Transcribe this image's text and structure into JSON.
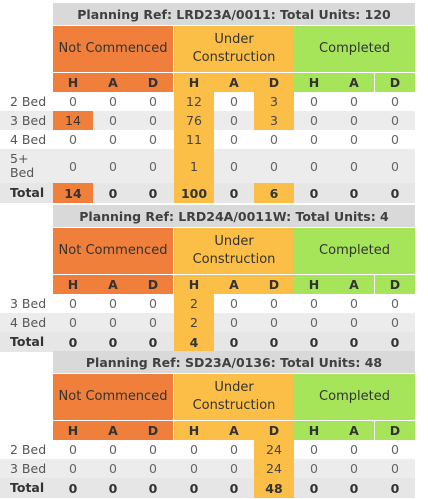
{
  "group_labels": {
    "not_commenced": "Not Commenced",
    "under_construction": "Under Construction",
    "completed": "Completed"
  },
  "sub_headers": [
    "H",
    "A",
    "D",
    "H",
    "A",
    "D",
    "H",
    "A",
    "D"
  ],
  "colors": {
    "not_commenced": "#f07f3c",
    "under_construction": "#fbbf47",
    "completed": "#a6e55a",
    "title_bg": "#d9d9d9"
  },
  "tables": [
    {
      "title": "Planning Ref: LRD23A/0011: Total Units: 120",
      "rows": [
        {
          "label": "2 Bed",
          "values": [
            "0",
            "0",
            "0",
            "12",
            "0",
            "3",
            "0",
            "0",
            "0"
          ]
        },
        {
          "label": "3 Bed",
          "values": [
            "14",
            "0",
            "0",
            "76",
            "0",
            "3",
            "0",
            "0",
            "0"
          ]
        },
        {
          "label": "4 Bed",
          "values": [
            "0",
            "0",
            "0",
            "11",
            "0",
            "0",
            "0",
            "0",
            "0"
          ]
        },
        {
          "label": "5+ Bed",
          "values": [
            "0",
            "0",
            "0",
            "1",
            "0",
            "0",
            "0",
            "0",
            "0"
          ]
        }
      ],
      "total": {
        "label": "Total",
        "values": [
          "14",
          "0",
          "0",
          "100",
          "0",
          "6",
          "0",
          "0",
          "0"
        ]
      }
    },
    {
      "title": "Planning Ref: LRD24A/0011W: Total Units: 4",
      "rows": [
        {
          "label": "3 Bed",
          "values": [
            "0",
            "0",
            "0",
            "2",
            "0",
            "0",
            "0",
            "0",
            "0"
          ]
        },
        {
          "label": "4 Bed",
          "values": [
            "0",
            "0",
            "0",
            "2",
            "0",
            "0",
            "0",
            "0",
            "0"
          ]
        }
      ],
      "total": {
        "label": "Total",
        "values": [
          "0",
          "0",
          "0",
          "4",
          "0",
          "0",
          "0",
          "0",
          "0"
        ]
      }
    },
    {
      "title": "Planning Ref: SD23A/0136: Total Units: 48",
      "rows": [
        {
          "label": "2 Bed",
          "values": [
            "0",
            "0",
            "0",
            "0",
            "0",
            "24",
            "0",
            "0",
            "0"
          ]
        },
        {
          "label": "3 Bed",
          "values": [
            "0",
            "0",
            "0",
            "0",
            "0",
            "24",
            "0",
            "0",
            "0"
          ]
        }
      ],
      "total": {
        "label": "Total",
        "values": [
          "0",
          "0",
          "0",
          "0",
          "0",
          "48",
          "0",
          "0",
          "0"
        ]
      }
    }
  ]
}
